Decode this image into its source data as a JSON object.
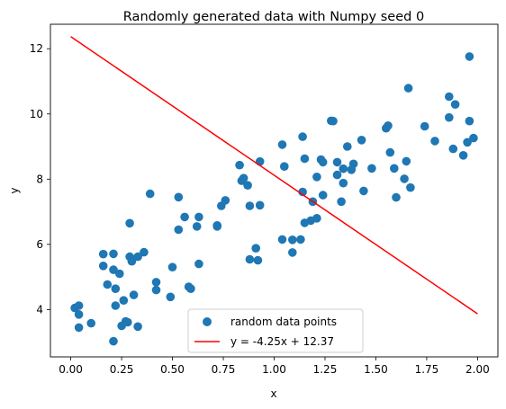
{
  "chart_data": {
    "type": "scatter",
    "title": "Randomly generated data with Numpy seed 0",
    "xlabel": "x",
    "ylabel": "y",
    "xlim": [
      -0.1,
      2.1
    ],
    "ylim": [
      2.55,
      12.75
    ],
    "xticks": [
      "0.00",
      "0.25",
      "0.50",
      "0.75",
      "1.00",
      "1.25",
      "1.50",
      "1.75",
      "2.00"
    ],
    "xtick_values": [
      0,
      0.25,
      0.5,
      0.75,
      1.0,
      1.25,
      1.5,
      1.75,
      2.0
    ],
    "yticks": [
      "4",
      "6",
      "8",
      "10",
      "12"
    ],
    "ytick_values": [
      4,
      6,
      8,
      10,
      12
    ],
    "grid": false,
    "legend_position": "lower center",
    "series": [
      {
        "name": "random data points",
        "kind": "scatter",
        "color": "#1f77b4",
        "points": [
          [
            0.02,
            4.05
          ],
          [
            0.04,
            3.85
          ],
          [
            0.04,
            4.12
          ],
          [
            0.04,
            3.45
          ],
          [
            0.1,
            3.58
          ],
          [
            0.16,
            5.7
          ],
          [
            0.16,
            5.34
          ],
          [
            0.18,
            4.77
          ],
          [
            0.21,
            5.22
          ],
          [
            0.21,
            3.03
          ],
          [
            0.21,
            5.71
          ],
          [
            0.22,
            4.12
          ],
          [
            0.22,
            4.64
          ],
          [
            0.24,
            5.1
          ],
          [
            0.25,
            3.5
          ],
          [
            0.26,
            4.28
          ],
          [
            0.27,
            3.64
          ],
          [
            0.28,
            3.61
          ],
          [
            0.29,
            6.65
          ],
          [
            0.29,
            5.62
          ],
          [
            0.3,
            5.48
          ],
          [
            0.31,
            4.45
          ],
          [
            0.33,
            5.62
          ],
          [
            0.33,
            3.48
          ],
          [
            0.36,
            5.76
          ],
          [
            0.39,
            7.55
          ],
          [
            0.42,
            4.84
          ],
          [
            0.42,
            4.6
          ],
          [
            0.49,
            4.39
          ],
          [
            0.5,
            5.3
          ],
          [
            0.53,
            7.45
          ],
          [
            0.53,
            6.45
          ],
          [
            0.56,
            6.84
          ],
          [
            0.58,
            4.7
          ],
          [
            0.59,
            4.64
          ],
          [
            0.62,
            6.55
          ],
          [
            0.63,
            6.84
          ],
          [
            0.63,
            5.4
          ],
          [
            0.72,
            6.55
          ],
          [
            0.72,
            6.58
          ],
          [
            0.74,
            7.18
          ],
          [
            0.76,
            7.35
          ],
          [
            0.83,
            8.43
          ],
          [
            0.84,
            7.95
          ],
          [
            0.85,
            8.03
          ],
          [
            0.87,
            7.81
          ],
          [
            0.88,
            7.18
          ],
          [
            0.88,
            5.54
          ],
          [
            0.91,
            5.88
          ],
          [
            0.92,
            5.51
          ],
          [
            0.93,
            8.54
          ],
          [
            0.93,
            7.2
          ],
          [
            1.04,
            6.15
          ],
          [
            1.04,
            9.06
          ],
          [
            1.05,
            8.39
          ],
          [
            1.09,
            6.14
          ],
          [
            1.09,
            5.75
          ],
          [
            1.13,
            6.15
          ],
          [
            1.14,
            9.3
          ],
          [
            1.14,
            7.61
          ],
          [
            1.15,
            6.66
          ],
          [
            1.15,
            8.63
          ],
          [
            1.18,
            6.73
          ],
          [
            1.19,
            7.31
          ],
          [
            1.21,
            8.07
          ],
          [
            1.21,
            6.8
          ],
          [
            1.23,
            8.6
          ],
          [
            1.24,
            7.51
          ],
          [
            1.24,
            8.52
          ],
          [
            1.28,
            9.79
          ],
          [
            1.29,
            9.78
          ],
          [
            1.31,
            8.52
          ],
          [
            1.31,
            8.13
          ],
          [
            1.33,
            7.31
          ],
          [
            1.34,
            8.32
          ],
          [
            1.34,
            7.88
          ],
          [
            1.36,
            9.0
          ],
          [
            1.38,
            8.29
          ],
          [
            1.39,
            8.47
          ],
          [
            1.43,
            9.2
          ],
          [
            1.44,
            7.64
          ],
          [
            1.48,
            8.33
          ],
          [
            1.55,
            9.56
          ],
          [
            1.56,
            9.64
          ],
          [
            1.57,
            8.82
          ],
          [
            1.59,
            8.33
          ],
          [
            1.6,
            7.44
          ],
          [
            1.64,
            8.01
          ],
          [
            1.65,
            8.55
          ],
          [
            1.66,
            10.79
          ],
          [
            1.67,
            7.74
          ],
          [
            1.74,
            9.62
          ],
          [
            1.79,
            9.17
          ],
          [
            1.86,
            10.53
          ],
          [
            1.86,
            9.89
          ],
          [
            1.88,
            8.93
          ],
          [
            1.89,
            10.29
          ],
          [
            1.93,
            8.73
          ],
          [
            1.95,
            9.13
          ],
          [
            1.96,
            11.76
          ],
          [
            1.96,
            9.78
          ],
          [
            1.98,
            9.26
          ]
        ]
      },
      {
        "name": "y = -4.25x + 12.37",
        "kind": "line",
        "color": "#ff0000",
        "slope": -4.25,
        "intercept": 12.37,
        "x_range": [
          0,
          2
        ]
      }
    ]
  }
}
